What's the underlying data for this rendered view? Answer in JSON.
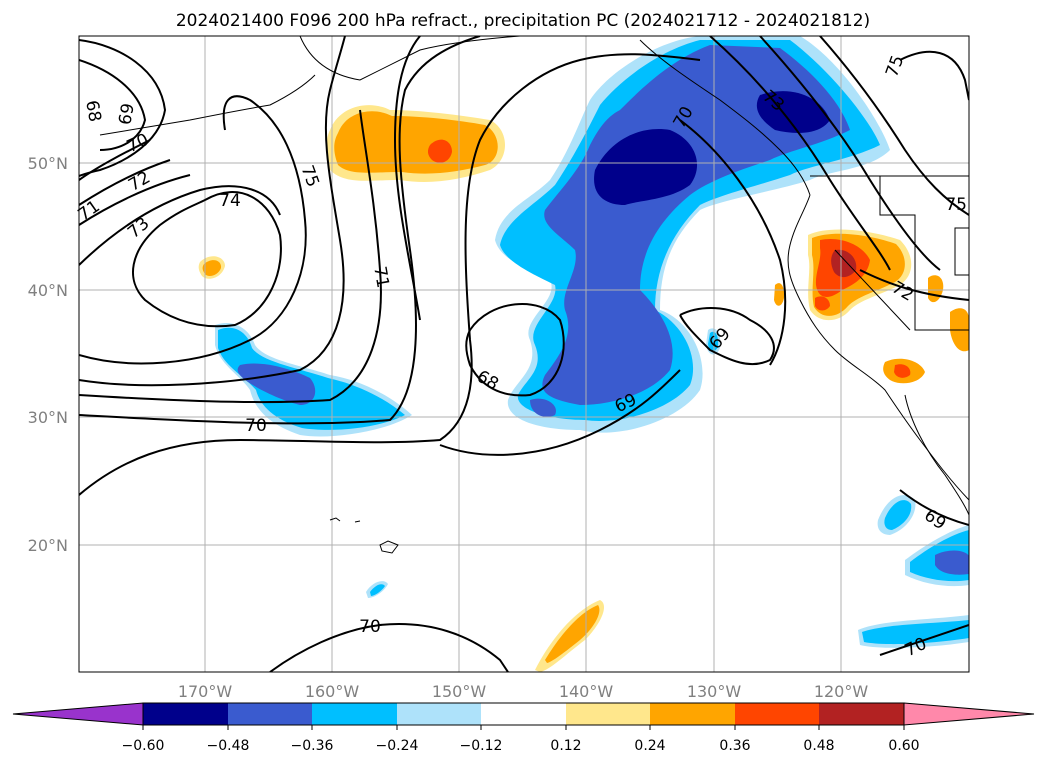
{
  "title": "2024021400 F096 200 hPa refract., precipitation PC (2024021712 - 2024021812)",
  "lat_labels": [
    "50°N",
    "40°N",
    "30°N",
    "20°N"
  ],
  "lon_labels": [
    "170°W",
    "160°W",
    "150°W",
    "140°W",
    "130°W",
    "120°W"
  ],
  "colorbar": {
    "colors": [
      "#9933cc",
      "#00008b",
      "#3a5bcf",
      "#00bfff",
      "#aee2fa",
      "#ffffff",
      "#ffe78c",
      "#ffa500",
      "#ff4500",
      "#b22222",
      "#ff88aa"
    ],
    "tick_labels": [
      "−0.60",
      "−0.48",
      "−0.36",
      "−0.24",
      "−0.12",
      "0.12",
      "0.24",
      "0.36",
      "0.48",
      "0.60"
    ]
  },
  "contour_labels": [
    "68",
    "69",
    "70",
    "71",
    "72",
    "73",
    "74",
    "75",
    "71",
    "70",
    "68",
    "69",
    "70",
    "73",
    "75",
    "72",
    "69",
    "69",
    "70",
    "70",
    "75",
    "7"
  ]
}
